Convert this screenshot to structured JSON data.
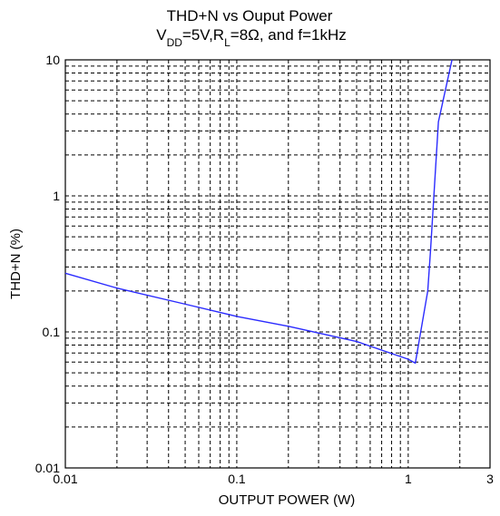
{
  "chart_data": {
    "type": "line",
    "title_line1": "THD+N vs Ouput Power",
    "title_line2_parts": [
      {
        "text": "V",
        "sub": false
      },
      {
        "text": "DD",
        "sub": true
      },
      {
        "text": "=5V,R",
        "sub": false
      },
      {
        "text": "L",
        "sub": true
      },
      {
        "text": "=8Ω, and f=1kHz",
        "sub": false
      }
    ],
    "xlabel": "OUTPUT POWER (W)",
    "ylabel": "THD+N (%)",
    "xscale": "log",
    "yscale": "log",
    "xlim": [
      0.01,
      3
    ],
    "ylim": [
      0.01,
      10
    ],
    "x_ticks": [
      {
        "value": 0.01,
        "label": "0.01"
      },
      {
        "value": 0.1,
        "label": "0.1"
      },
      {
        "value": 1,
        "label": "1"
      },
      {
        "value": 3,
        "label": "3"
      }
    ],
    "y_ticks": [
      {
        "value": 0.01,
        "label": "0.01"
      },
      {
        "value": 0.1,
        "label": "0.1"
      },
      {
        "value": 1,
        "label": "1"
      },
      {
        "value": 10,
        "label": "10"
      }
    ],
    "grid": true,
    "grid_style": "dashed",
    "line_color": "#2b2bff",
    "series": [
      {
        "x": [
          0.01,
          0.02,
          0.05,
          0.1,
          0.2,
          0.5,
          1.0,
          1.1,
          1.3,
          1.35,
          1.5,
          1.8
        ],
        "y": [
          0.27,
          0.21,
          0.16,
          0.13,
          0.11,
          0.085,
          0.063,
          0.059,
          0.2,
          0.4,
          3.5,
          10
        ]
      }
    ]
  }
}
